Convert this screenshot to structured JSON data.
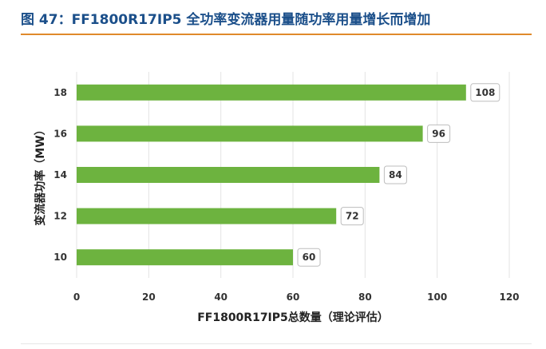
{
  "page": {
    "title": "图 47：FF1800R17IP5 全功率变流器用量随功率用量增长而增加"
  },
  "colors": {
    "title": "#1b4f8a",
    "title_rule": "#e08a2b",
    "bar": "#6db33f",
    "grid": "#e3e3e3"
  },
  "chart_data": {
    "type": "bar",
    "orientation": "horizontal",
    "title": "",
    "xlabel": "FF1800R17IP5总数量（理论评估）",
    "ylabel": "变流器功率（MW）",
    "categories": [
      "18",
      "16",
      "14",
      "12",
      "10"
    ],
    "values": [
      108,
      96,
      84,
      72,
      60
    ],
    "data_labels": [
      "108",
      "96",
      "84",
      "72",
      "60"
    ],
    "xlim": [
      0,
      120
    ],
    "xticks": [
      0,
      20,
      40,
      60,
      80,
      100,
      120
    ],
    "grid": "vertical"
  }
}
